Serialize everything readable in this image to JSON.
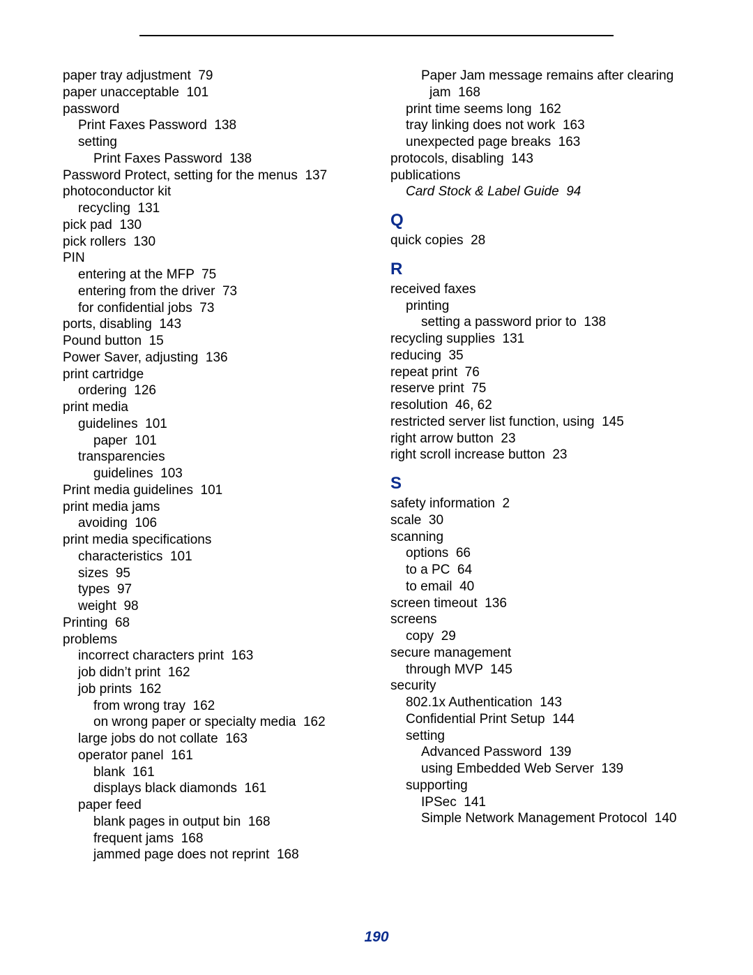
{
  "page_number": "190",
  "colors": {
    "heading": "#0b2d8e",
    "text": "#000000",
    "rule": "#000000",
    "page_number": "#0b2d8e",
    "background": "#ffffff"
  },
  "entries": [
    {
      "level": 0,
      "text": "paper tray adjustment",
      "page": "79"
    },
    {
      "level": 0,
      "text": "paper unacceptable",
      "page": "101"
    },
    {
      "level": 0,
      "text": "password"
    },
    {
      "level": 1,
      "text": "Print Faxes Password",
      "page": "138"
    },
    {
      "level": 1,
      "text": "setting"
    },
    {
      "level": 2,
      "text": "Print Faxes Password",
      "page": "138"
    },
    {
      "level": 0,
      "text": "Password Protect, setting for the menus",
      "page": "137"
    },
    {
      "level": 0,
      "text": "photoconductor kit"
    },
    {
      "level": 1,
      "text": "recycling",
      "page": "131"
    },
    {
      "level": 0,
      "text": "pick pad",
      "page": "130"
    },
    {
      "level": 0,
      "text": "pick rollers",
      "page": "130"
    },
    {
      "level": 0,
      "text": "PIN"
    },
    {
      "level": 1,
      "text": "entering at the MFP",
      "page": "75"
    },
    {
      "level": 1,
      "text": "entering from the driver",
      "page": "73"
    },
    {
      "level": 1,
      "text": "for confidential jobs",
      "page": "73"
    },
    {
      "level": 0,
      "text": "ports, disabling",
      "page": "143"
    },
    {
      "level": 0,
      "text": "Pound button",
      "page": "15"
    },
    {
      "level": 0,
      "text": "Power Saver, adjusting",
      "page": "136"
    },
    {
      "level": 0,
      "text": "print cartridge"
    },
    {
      "level": 1,
      "text": "ordering",
      "page": "126"
    },
    {
      "level": 0,
      "text": "print media"
    },
    {
      "level": 1,
      "text": "guidelines",
      "page": "101"
    },
    {
      "level": 2,
      "text": "paper",
      "page": "101"
    },
    {
      "level": 1,
      "text": "transparencies"
    },
    {
      "level": 2,
      "text": "guidelines",
      "page": "103"
    },
    {
      "level": 0,
      "text": "Print media guidelines",
      "page": "101"
    },
    {
      "level": 0,
      "text": "print media jams"
    },
    {
      "level": 1,
      "text": "avoiding",
      "page": "106"
    },
    {
      "level": 0,
      "text": "print media specifications"
    },
    {
      "level": 1,
      "text": "characteristics",
      "page": "101"
    },
    {
      "level": 1,
      "text": "sizes",
      "page": "95"
    },
    {
      "level": 1,
      "text": "types",
      "page": "97"
    },
    {
      "level": 1,
      "text": "weight",
      "page": "98"
    },
    {
      "level": 0,
      "text": "Printing",
      "page": "68"
    },
    {
      "level": 0,
      "text": "problems"
    },
    {
      "level": 1,
      "text": "incorrect characters print",
      "page": "163"
    },
    {
      "level": 1,
      "text": "job didn’t print",
      "page": "162"
    },
    {
      "level": 1,
      "text": "job prints",
      "page": "162"
    },
    {
      "level": 2,
      "text": "from wrong tray",
      "page": "162"
    },
    {
      "level": 2,
      "text": "on wrong paper or specialty media",
      "page": "162"
    },
    {
      "level": 1,
      "text": "large jobs do not collate",
      "page": "163"
    },
    {
      "level": 1,
      "text": "operator panel",
      "page": "161"
    },
    {
      "level": 2,
      "text": "blank",
      "page": "161"
    },
    {
      "level": 2,
      "text": "displays black diamonds",
      "page": "161"
    },
    {
      "level": 1,
      "text": "paper feed"
    },
    {
      "level": 2,
      "text": "blank pages in output bin",
      "page": "168"
    },
    {
      "level": 2,
      "text": "frequent jams",
      "page": "168"
    },
    {
      "level": 2,
      "text": "jammed page does not reprint",
      "page": "168"
    },
    {
      "level": 2,
      "text": "Paper Jam message remains after clearing jam",
      "page": "168",
      "hang": true
    },
    {
      "level": 1,
      "text": "print time seems long",
      "page": "162"
    },
    {
      "level": 1,
      "text": "tray linking does not work",
      "page": "163"
    },
    {
      "level": 1,
      "text": "unexpected page breaks",
      "page": "163"
    },
    {
      "level": 0,
      "text": "protocols, disabling",
      "page": "143"
    },
    {
      "level": 0,
      "text": "publications"
    },
    {
      "level": 1,
      "text": "Card Stock & Label Guide",
      "page": "94",
      "italic": true
    },
    {
      "letter": "Q"
    },
    {
      "level": 0,
      "text": "quick copies",
      "page": "28"
    },
    {
      "letter": "R"
    },
    {
      "level": 0,
      "text": "received faxes"
    },
    {
      "level": 1,
      "text": "printing"
    },
    {
      "level": 2,
      "text": "setting a password prior to",
      "page": "138"
    },
    {
      "level": 0,
      "text": "recycling supplies",
      "page": "131"
    },
    {
      "level": 0,
      "text": "reducing",
      "page": "35"
    },
    {
      "level": 0,
      "text": "repeat print",
      "page": "76"
    },
    {
      "level": 0,
      "text": "reserve print",
      "page": "75"
    },
    {
      "level": 0,
      "text": "resolution",
      "page": "46, 62"
    },
    {
      "level": 0,
      "text": "restricted server list function, using",
      "page": "145"
    },
    {
      "level": 0,
      "text": "right arrow button",
      "page": "23"
    },
    {
      "level": 0,
      "text": "right scroll increase button",
      "page": "23"
    },
    {
      "letter": "S"
    },
    {
      "level": 0,
      "text": "safety information",
      "page": "2"
    },
    {
      "level": 0,
      "text": "scale",
      "page": "30"
    },
    {
      "level": 0,
      "text": "scanning"
    },
    {
      "level": 1,
      "text": "options",
      "page": "66"
    },
    {
      "level": 1,
      "text": "to a PC",
      "page": "64"
    },
    {
      "level": 1,
      "text": "to email",
      "page": "40"
    },
    {
      "level": 0,
      "text": "screen timeout",
      "page": "136"
    },
    {
      "level": 0,
      "text": "screens"
    },
    {
      "level": 1,
      "text": "copy",
      "page": "29"
    },
    {
      "level": 0,
      "text": "secure management"
    },
    {
      "level": 1,
      "text": "through MVP",
      "page": "145"
    },
    {
      "level": 0,
      "text": "security"
    },
    {
      "level": 1,
      "text": "802.1x Authentication",
      "page": "143"
    },
    {
      "level": 1,
      "text": "Confidential Print Setup",
      "page": "144"
    },
    {
      "level": 1,
      "text": "setting"
    },
    {
      "level": 2,
      "text": "Advanced Password",
      "page": "139"
    },
    {
      "level": 2,
      "text": "using Embedded Web Server",
      "page": "139"
    },
    {
      "level": 1,
      "text": "supporting"
    },
    {
      "level": 2,
      "text": "IPSec",
      "page": "141"
    },
    {
      "level": 2,
      "text": "Simple Network Management Protocol",
      "page": "140",
      "hang": true
    }
  ]
}
